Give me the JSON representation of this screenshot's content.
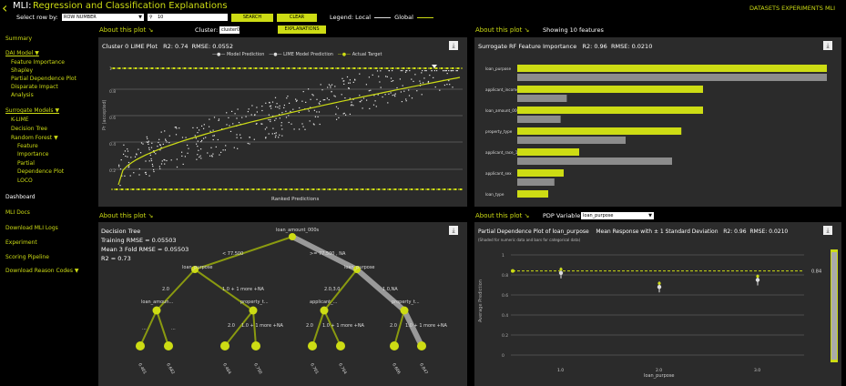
{
  "header": {
    "back": "‹",
    "app": "MLI:",
    "title": "Regression and Classification Explanations",
    "select_row_label": "Select row by:",
    "row_select_value": "ROW NUMBER",
    "row_input_value": "10",
    "search_label": "SEARCH",
    "clear_label": "CLEAR",
    "legend_label": "Legend:",
    "legend_local": "Local",
    "legend_global": "Global",
    "nav": [
      "DATASETS",
      "EXPERIMENTS",
      "MLI"
    ],
    "cluster_label": "Cluster:",
    "cluster_value": "cluster0",
    "explanations_label": "EXPLANATIONS"
  },
  "sidebar": {
    "items": [
      {
        "label": "Summary",
        "style": "accent"
      },
      {
        "label": "DAI Model ▼",
        "style": "accent"
      },
      {
        "label": "Feature Importance",
        "style": "accent"
      },
      {
        "label": "Shapley",
        "style": "accent"
      },
      {
        "label": "Partial Dependence Plot",
        "style": "accent"
      },
      {
        "label": "Disparate Impact",
        "style": "accent"
      },
      {
        "label": "Analysis",
        "style": "accent"
      },
      {
        "label": "Surrogate Models ▼",
        "style": "accent"
      },
      {
        "label": "K-LIME",
        "style": "accent"
      },
      {
        "label": "Decision Tree",
        "style": "accent"
      },
      {
        "label": "Random Forest ▼",
        "style": "accent"
      },
      {
        "label": "Feature",
        "style": "accent"
      },
      {
        "label": "Importance",
        "style": "accent"
      },
      {
        "label": "Partial",
        "style": "accent"
      },
      {
        "label": "Dependence Plot",
        "style": "accent"
      },
      {
        "label": "LOCO",
        "style": "accent"
      },
      {
        "label": "Dashboard",
        "style": "white"
      },
      {
        "label": "MLI Docs",
        "style": "accent"
      },
      {
        "label": "Download MLI Logs",
        "style": "accent"
      },
      {
        "label": "Experiment",
        "style": "accent"
      },
      {
        "label": "Scoring Pipeline",
        "style": "accent"
      },
      {
        "label": "Download Reason Codes ▼",
        "style": "accent"
      }
    ]
  },
  "lime": {
    "about": "About this plot ↘",
    "title": "Cluster 0 LIME Plot",
    "r2": "R2: 0.74",
    "rmse": "RMSE: 0.0552",
    "legend": [
      "Model Prediction",
      "LIME Model Prediction",
      "Actual Target"
    ],
    "ylabel": "Pr (accepted)",
    "xlabel": "Ranked Predictions",
    "yticks": [
      "1",
      "0.8",
      "0.6",
      "0.4",
      "0.2"
    ]
  },
  "rf": {
    "about": "About this plot ↘",
    "showing": "Showing 10 features",
    "title": "Surrogate RF Feature Importance",
    "r2": "R2: 0.96",
    "rmse": "RMSE: 0.0210"
  },
  "tree": {
    "about": "About this plot ↘",
    "title": "Decision Tree",
    "training_rmse": "Training RMSE = 0.05503",
    "cv_rmse": "Mean 3 Fold RMSE = 0.05503",
    "r2": "R2 = 0.73",
    "root": "loan_amount_000s",
    "left_edge": "< 77.500",
    "right_edge": ">= 77.500 , NA",
    "n_left": "loan_purpose",
    "n_right": "loan_purpose",
    "e_ll": "2.0",
    "e_lr": "1.0 + 1 more +NA",
    "e_rl": "2.0,3.0",
    "e_rr": "1.0,NA",
    "n_ll": "loan_amoun...",
    "n_lr": "property_t...",
    "n_rl": "applicant_...",
    "n_rr": "property_t...",
    "e_ll_l": "...",
    "e_ll_r": "...",
    "e_lr_l": "2.0",
    "e_lr_r": "1.0 + 1 more +NA",
    "e_rl_l": "2.0",
    "e_rl_r": "1.0 + 1 more +NA",
    "e_rr_l": "2.0",
    "e_rr_r": "1.0 + 1 more +NA",
    "leaves": [
      "0.401",
      "0.682",
      "0.464",
      "0.750",
      "0.701",
      "0.764",
      "0.606",
      "0.847"
    ]
  },
  "pdp": {
    "about": "About this plot ↘",
    "var_label": "PDP Variable:",
    "var_value": "loan_purpose",
    "title": "Partial Dependence Plot of loan_purpose",
    "subtitle": "Mean Response with ± 1 Standard Deviation",
    "r2": "R2: 0.96",
    "rmse": "RMSE: 0.0210",
    "note": "(Shaded for numeric data and bars for categorical data)",
    "ylabel": "Average Prediction",
    "xlabel": "loan_purpose",
    "yticks": [
      "1",
      "0.8",
      "0.6",
      "0.4",
      "0.2",
      "0"
    ],
    "xticks": [
      "1.0",
      "2.0",
      "3.0"
    ],
    "mean_label": "0.84"
  },
  "chart_data": [
    {
      "type": "bar",
      "title": "Surrogate RF Feature Importance",
      "orientation": "horizontal",
      "categories": [
        "loan_purpose",
        "applicant_income_...",
        "loan_amount_000s",
        "property_type",
        "applicant_race_1",
        "applicant_sex",
        "loan_type"
      ],
      "series": [
        {
          "name": "Local",
          "color": "#cddc14",
          "values": [
            1.0,
            0.6,
            0.6,
            0.53,
            0.2,
            0.15,
            0.1
          ]
        },
        {
          "name": "Global",
          "color": "#8c8c8c",
          "values": [
            1.0,
            0.16,
            0.14,
            0.35,
            0.5,
            0.12,
            0
          ]
        }
      ],
      "xlim": [
        0,
        1
      ]
    },
    {
      "type": "scatter",
      "title": "Partial Dependence Plot of loan_purpose",
      "xlabel": "loan_purpose",
      "ylabel": "Average Prediction",
      "categories": [
        "1.0",
        "2.0",
        "3.0"
      ],
      "values": [
        0.82,
        0.68,
        0.75
      ],
      "mean_line": 0.84,
      "ylim": [
        0,
        1
      ]
    }
  ]
}
